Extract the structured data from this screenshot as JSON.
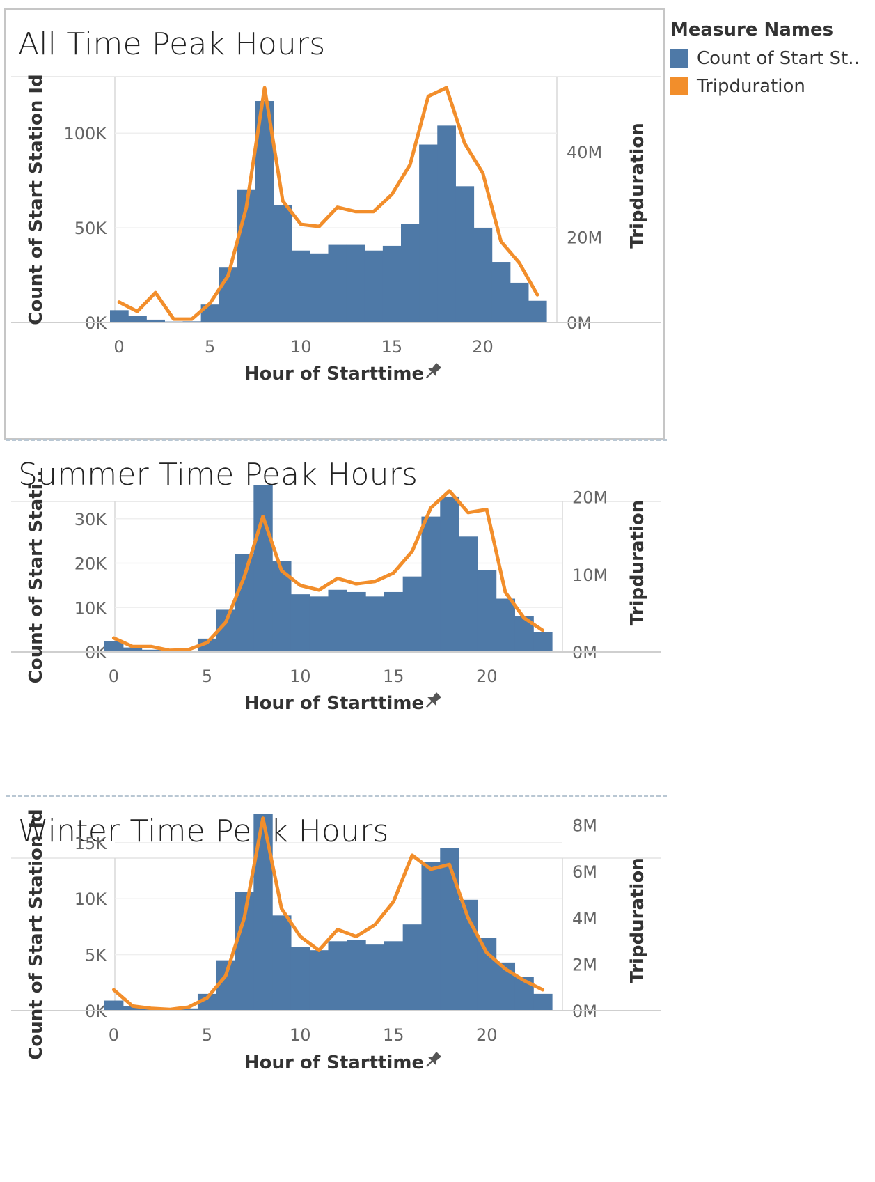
{
  "legend": {
    "title": "Measure Names",
    "items": [
      {
        "label": "Count of Start St..",
        "color": "#4e79a7"
      },
      {
        "label": "Tripduration",
        "color": "#f28e2b"
      }
    ]
  },
  "colors": {
    "bars": "#4e79a7",
    "line": "#f28e2b"
  },
  "chart_data": [
    {
      "type": "bar",
      "combo": "bar + line (dual axis)",
      "title": "All Time Peak Hours",
      "xlabel": "Hour of Starttime",
      "ylabel": "Count of Start Station Id",
      "y2label": "Tripduration",
      "x": [
        0,
        1,
        2,
        3,
        4,
        5,
        6,
        7,
        8,
        9,
        10,
        11,
        12,
        13,
        14,
        15,
        16,
        17,
        18,
        19,
        20,
        21,
        22,
        23
      ],
      "x_ticks": [
        0,
        5,
        10,
        15,
        20
      ],
      "x_tick_labels": [
        "0",
        "5",
        "10",
        "15",
        "20"
      ],
      "ylim": [
        0,
        124000
      ],
      "y_ticks": [
        0,
        50000,
        100000
      ],
      "y_tick_labels": [
        "0K",
        "50K",
        "100K"
      ],
      "y2lim": [
        0,
        55000000
      ],
      "y2_ticks": [
        0,
        20000000,
        40000000
      ],
      "y2_tick_labels": [
        "0M",
        "20M",
        "40M"
      ],
      "series": [
        {
          "name": "Count of Start Station Id",
          "axis": "left",
          "type": "bar",
          "values": [
            6500,
            3500,
            1500,
            500,
            600,
            9500,
            29000,
            70000,
            117000,
            62000,
            38000,
            36500,
            41000,
            41000,
            38000,
            40500,
            52000,
            94000,
            104000,
            72000,
            50000,
            32000,
            21000,
            11500
          ]
        },
        {
          "name": "Tripduration",
          "axis": "right",
          "type": "line",
          "values": [
            4800000,
            2600000,
            7000000,
            800000,
            800000,
            4500000,
            11000000,
            27000000,
            55000000,
            28500000,
            23000000,
            22500000,
            27000000,
            26000000,
            26000000,
            30000000,
            37000000,
            53000000,
            55000000,
            42000000,
            35000000,
            19000000,
            14000000,
            6500000
          ]
        }
      ]
    },
    {
      "type": "bar",
      "combo": "bar + line (dual axis)",
      "title": "Summer Time Peak Hours",
      "xlabel": "Hour of Starttime",
      "ylabel": "Count of Start Stati..",
      "y2label": "Tripduration",
      "x": [
        0,
        1,
        2,
        3,
        4,
        5,
        6,
        7,
        8,
        9,
        10,
        11,
        12,
        13,
        14,
        15,
        16,
        17,
        18,
        19,
        20,
        21,
        22,
        23
      ],
      "x_ticks": [
        0,
        5,
        10,
        15,
        20
      ],
      "x_tick_labels": [
        "0",
        "5",
        "10",
        "15",
        "20"
      ],
      "ylim": [
        0,
        37500
      ],
      "y_ticks": [
        0,
        10000,
        20000,
        30000
      ],
      "y_tick_labels": [
        "0K",
        "10K",
        "20K",
        "30K"
      ],
      "y2lim": [
        0,
        21500000
      ],
      "y2_ticks": [
        0,
        10000000,
        20000000
      ],
      "y2_tick_labels": [
        "0M",
        "10M",
        "20M"
      ],
      "series": [
        {
          "name": "Count of Start Station Id",
          "axis": "left",
          "type": "bar",
          "values": [
            2500,
            1000,
            500,
            200,
            300,
            3000,
            9500,
            22000,
            37500,
            20500,
            13000,
            12500,
            14000,
            13500,
            12500,
            13500,
            17000,
            30500,
            35000,
            26000,
            18500,
            12000,
            8000,
            4500
          ]
        },
        {
          "name": "Tripduration",
          "axis": "right",
          "type": "line",
          "values": [
            1800000,
            700000,
            700000,
            200000,
            300000,
            1200000,
            3800000,
            9700000,
            17500000,
            10500000,
            8600000,
            8000000,
            9500000,
            8800000,
            9100000,
            10200000,
            13000000,
            18600000,
            20800000,
            18000000,
            18400000,
            7700000,
            4400000,
            2800000
          ]
        }
      ]
    },
    {
      "type": "bar",
      "combo": "bar + line (dual axis)",
      "title": "Winter Time Peak Hours",
      "xlabel": "Hour of Starttime",
      "ylabel": "Count of Start Station Id",
      "y2label": "Tripduration",
      "x": [
        0,
        1,
        2,
        3,
        4,
        5,
        6,
        7,
        8,
        9,
        10,
        11,
        12,
        13,
        14,
        15,
        16,
        17,
        18,
        19,
        20,
        21,
        22,
        23
      ],
      "x_ticks": [
        0,
        5,
        10,
        15,
        20
      ],
      "x_tick_labels": [
        "0",
        "5",
        "10",
        "15",
        "20"
      ],
      "ylim": [
        0,
        17600
      ],
      "y_ticks": [
        0,
        5000,
        10000,
        15000
      ],
      "y_tick_labels": [
        "0K",
        "5K",
        "10K",
        "15K"
      ],
      "y2lim": [
        0,
        8500000
      ],
      "y2_ticks": [
        0,
        2000000,
        4000000,
        6000000,
        8000000
      ],
      "y2_tick_labels": [
        "0M",
        "2M",
        "4M",
        "6M",
        "8M"
      ],
      "series": [
        {
          "name": "Count of Start Station Id",
          "axis": "left",
          "type": "bar",
          "values": [
            900,
            400,
            200,
            100,
            200,
            1500,
            4500,
            10600,
            17600,
            8500,
            5700,
            5400,
            6200,
            6300,
            5900,
            6200,
            7700,
            13300,
            14500,
            9900,
            6500,
            4300,
            3000,
            1500
          ]
        },
        {
          "name": "Tripduration",
          "axis": "right",
          "type": "line",
          "values": [
            900000,
            200000,
            100000,
            50000,
            150000,
            550000,
            1500000,
            4000000,
            8300000,
            4400000,
            3200000,
            2600000,
            3500000,
            3200000,
            3700000,
            4700000,
            6700000,
            6100000,
            6300000,
            4000000,
            2500000,
            1800000,
            1300000,
            900000
          ]
        }
      ]
    }
  ]
}
